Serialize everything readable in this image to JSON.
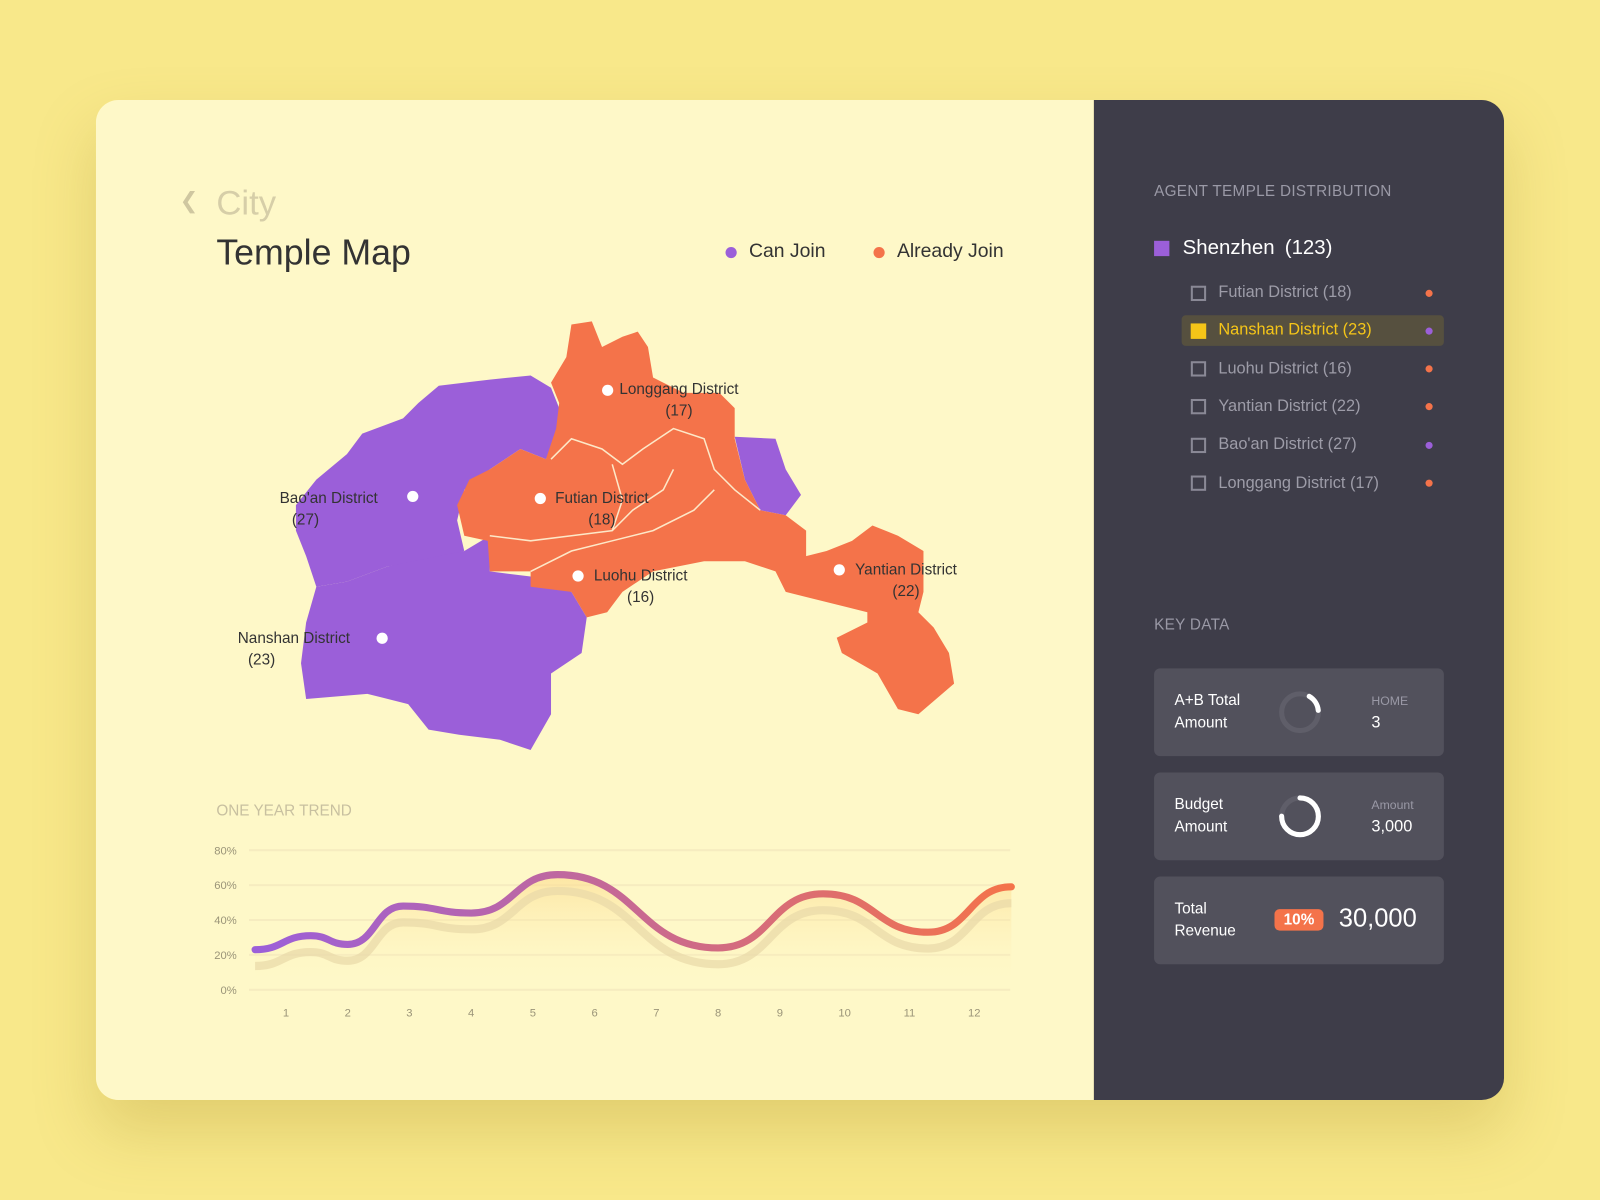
{
  "header": {
    "back_icon": "chevron-left-icon",
    "subtitle": "City",
    "title": "Temple Map"
  },
  "legend": [
    {
      "label": "Can Join",
      "color": "#9b5fd9"
    },
    {
      "label": "Already Join",
      "color": "#f4734a"
    }
  ],
  "map": {
    "districts": [
      {
        "name": "Longgang District",
        "count": "(17)",
        "status": "Already Join"
      },
      {
        "name": "Bao'an District",
        "count": "(27)",
        "status": "Can Join"
      },
      {
        "name": "Futian District",
        "count": "(18)",
        "status": "Already Join"
      },
      {
        "name": "Luohu District",
        "count": "(16)",
        "status": "Already Join"
      },
      {
        "name": "Yantian District",
        "count": "(22)",
        "status": "Already Join"
      },
      {
        "name": "Nanshan District",
        "count": "(23)",
        "status": "Can Join"
      }
    ]
  },
  "trend": {
    "title": "ONE YEAR TREND"
  },
  "chart_data": {
    "type": "line",
    "title": "ONE YEAR TREND",
    "x_ticks": [
      "1",
      "2",
      "3",
      "4",
      "5",
      "6",
      "7",
      "8",
      "9",
      "10",
      "11",
      "12"
    ],
    "y_ticks": [
      "0%",
      "20%",
      "40%",
      "60%",
      "80%"
    ],
    "ylim": [
      0,
      80
    ],
    "grid": true,
    "series": [
      {
        "points": [
          [
            0.5,
            23
          ],
          [
            1.4,
            31
          ],
          [
            2,
            26
          ],
          [
            2.9,
            48
          ],
          [
            4,
            44
          ],
          [
            5.4,
            66
          ],
          [
            8,
            24
          ],
          [
            9.7,
            55
          ],
          [
            11.4,
            33
          ],
          [
            12.75,
            59
          ]
        ],
        "gradient": [
          "#9b5fd9",
          "#f4734a"
        ]
      }
    ]
  },
  "sidebar": {
    "section_title": "AGENT TEMPLE DISTRIBUTION",
    "city": {
      "name": "Shenzhen",
      "count": "(123)",
      "color": "#9b5fd9"
    },
    "items": [
      {
        "label": "Futian District (18)",
        "dot": "#f4734a",
        "selected": false
      },
      {
        "label": "Nanshan District (23)",
        "dot": "#9b5fd9",
        "selected": true
      },
      {
        "label": "Luohu District (16)",
        "dot": "#f4734a",
        "selected": false
      },
      {
        "label": "Yantian District (22)",
        "dot": "#f4734a",
        "selected": false
      },
      {
        "label": "Bao'an District (27)",
        "dot": "#9b5fd9",
        "selected": false
      },
      {
        "label": "Longgang District (17)",
        "dot": "#f4734a",
        "selected": false
      }
    ],
    "key_title": "KEY DATA",
    "key_cards": [
      {
        "label": "A+B Total Amount",
        "caption": "HOME",
        "value": "3",
        "ring_fraction": 0.15
      },
      {
        "label": "Budget Amount",
        "caption": "Amount",
        "value": "3,000",
        "ring_fraction": 0.75
      },
      {
        "label": "Total Revenue",
        "badge": "10%",
        "value": "30,000"
      }
    ]
  }
}
